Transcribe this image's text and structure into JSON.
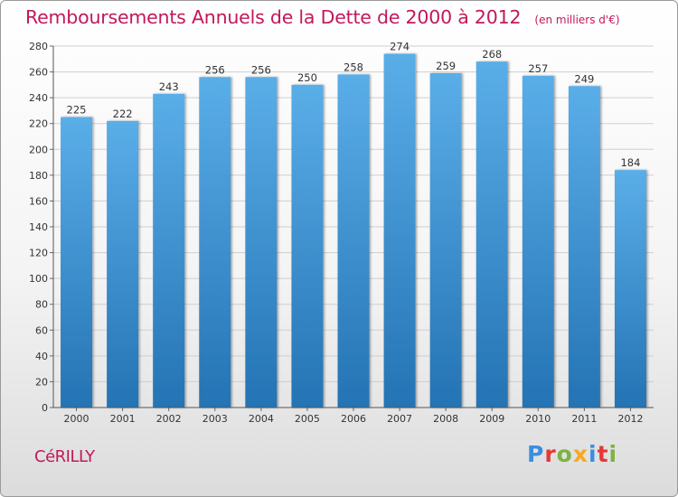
{
  "title": "Remboursements Annuels de la Dette de 2000 à 2012",
  "subtitle": "(en milliers d'€)",
  "commune": "CéRILLY",
  "brand": {
    "letters": [
      {
        "char": "P",
        "color": "#3a8ee0"
      },
      {
        "char": "r",
        "color": "#e53935"
      },
      {
        "char": "o",
        "color": "#7cb342"
      },
      {
        "char": "x",
        "color": "#f9a825"
      },
      {
        "char": "i",
        "color": "#3a8ee0"
      },
      {
        "char": "t",
        "color": "#e53935"
      },
      {
        "char": "i",
        "color": "#7cb342"
      }
    ]
  },
  "chart_data": {
    "type": "bar",
    "categories": [
      "2000",
      "2001",
      "2002",
      "2003",
      "2004",
      "2005",
      "2006",
      "2007",
      "2008",
      "2009",
      "2010",
      "2011",
      "2012"
    ],
    "values": [
      225,
      222,
      243,
      256,
      256,
      250,
      258,
      274,
      259,
      268,
      257,
      249,
      184
    ],
    "data_labels": [
      "225",
      "222",
      "243",
      "256",
      "256",
      "250",
      "258",
      "274",
      "259",
      "268",
      "257",
      "249",
      "184"
    ],
    "ylim": [
      0,
      280
    ],
    "yticks": [
      0,
      20,
      40,
      60,
      80,
      100,
      120,
      140,
      160,
      180,
      200,
      220,
      240,
      260,
      280
    ],
    "xlabel": "",
    "ylabel": "",
    "grid": true,
    "bar_color_top": "#5aaee8",
    "bar_color_bottom": "#2473b4"
  }
}
